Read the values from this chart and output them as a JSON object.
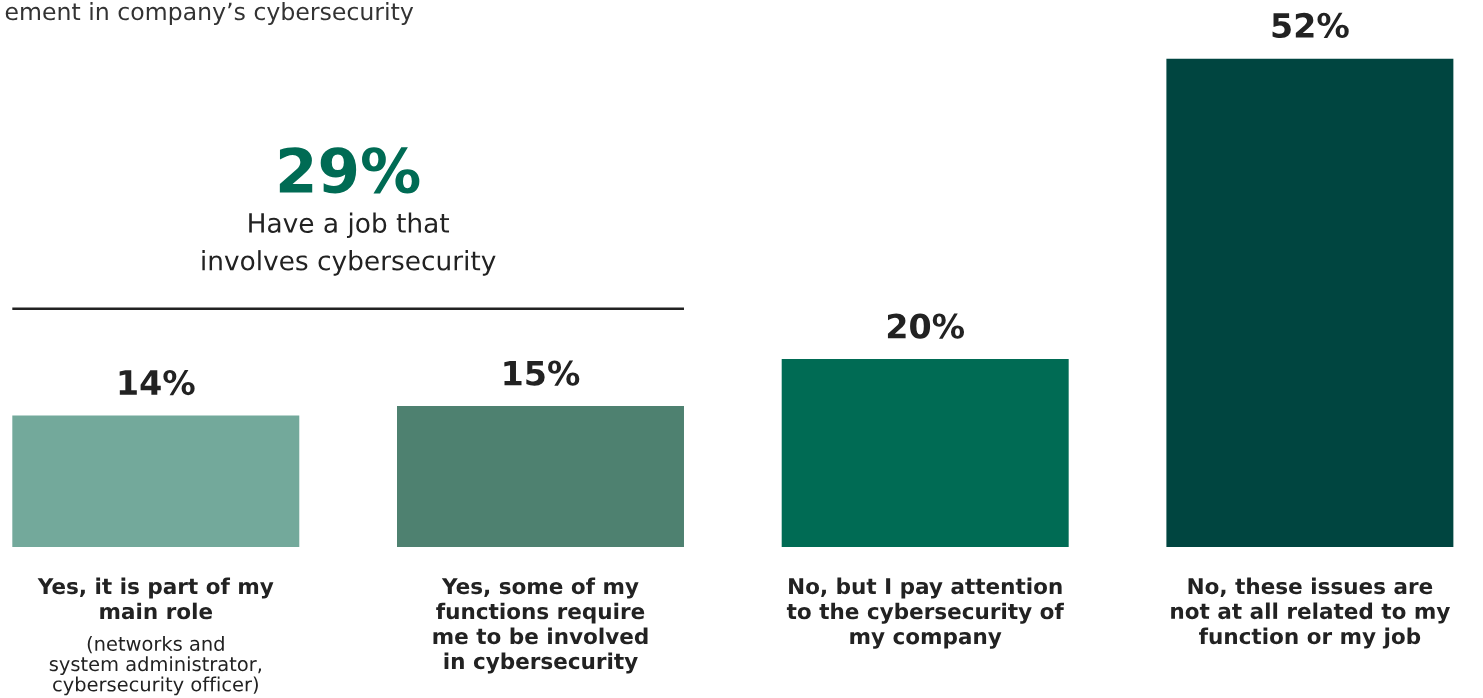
{
  "chart_data": {
    "type": "bar",
    "title": "ement in company’s cybersecurity",
    "categories": [
      "Yes, it is part of my\nmain role\n(networks and\nsystem administrator,\ncybersecurity officer)",
      "Yes, some of my\nfunctions require\nme to be involved\nin cybersecurity",
      "No, but I pay attention\nto the cybersecurity of\nmy company",
      "No, these issues are\nnot at all related to my\nfunction or my job"
    ],
    "values": [
      14,
      15,
      20,
      52
    ],
    "value_labels": [
      "14%",
      "15%",
      "20%",
      "52%"
    ],
    "colors": [
      "#73a99b",
      "#4e8170",
      "#006b54",
      "#004540"
    ],
    "annotations": [
      "29%",
      "Have a job that\ninvolves cybersecurity"
    ],
    "legend": false
  }
}
